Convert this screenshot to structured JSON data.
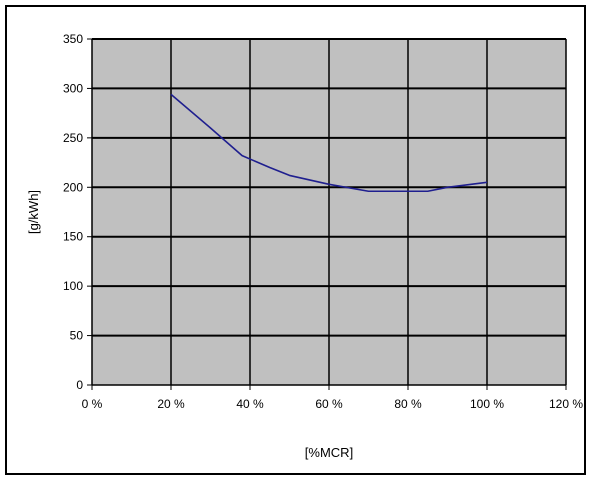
{
  "chart_data": {
    "type": "line",
    "title": "",
    "xlabel": "[%MCR]",
    "ylabel": "[g/kWh]",
    "xlim": [
      0,
      120
    ],
    "ylim": [
      0,
      350
    ],
    "x_ticks": [
      0,
      20,
      40,
      60,
      80,
      100,
      120
    ],
    "x_tick_labels": [
      "0 %",
      "20 %",
      "40 %",
      "60 %",
      "80 %",
      "100 %",
      "120 %"
    ],
    "y_ticks": [
      0,
      50,
      100,
      150,
      200,
      250,
      300,
      350
    ],
    "y_tick_labels": [
      "0",
      "50",
      "100",
      "150",
      "200",
      "250",
      "300",
      "350"
    ],
    "grid": true,
    "legend": "none",
    "plot_background": "#c0c0c0",
    "series": [
      {
        "color": "#1f1f8f",
        "x": [
          20,
          30,
          38,
          45,
          50,
          60,
          70,
          80,
          85,
          90,
          100
        ],
        "y": [
          294,
          260,
          232,
          220,
          212,
          203,
          196,
          196,
          196,
          200,
          205
        ]
      }
    ]
  }
}
